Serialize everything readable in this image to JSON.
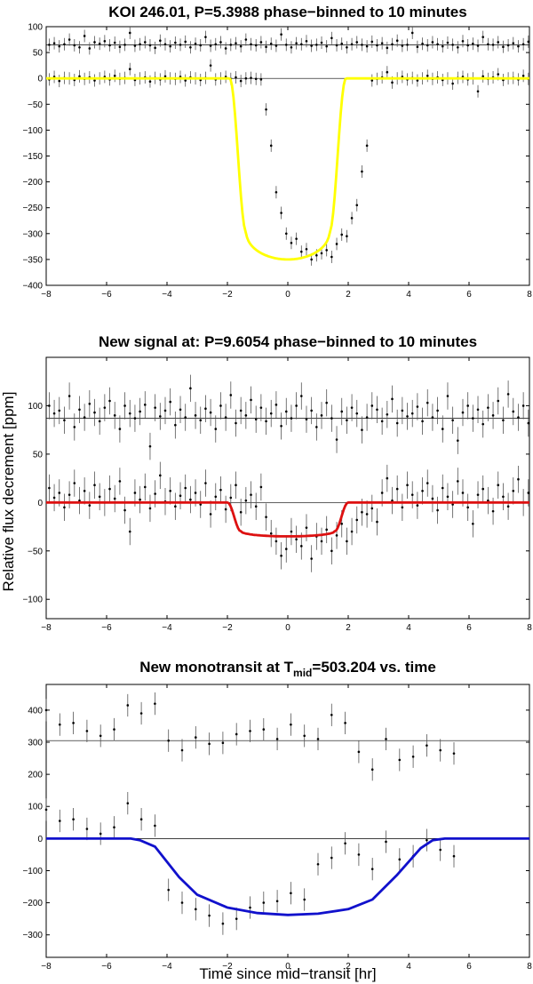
{
  "figure": {
    "ylabel": "Relative flux decrement [ppm]",
    "xlabel": "Time since mid−transit [hr]"
  },
  "chart_data": [
    {
      "type": "scatter",
      "title": "KOI 246.01, P=5.3988 phase−binned to 10 minutes",
      "xlim": [
        -8,
        8
      ],
      "ylim": [
        -400,
        100
      ],
      "xticks": [
        -8,
        -6,
        -4,
        -2,
        0,
        2,
        4,
        6,
        8
      ],
      "yticks": [
        100,
        50,
        0,
        -50,
        -100,
        -150,
        -200,
        -250,
        -300,
        -350,
        -400
      ],
      "grid": false,
      "baseline_levels": [
        65,
        0
      ],
      "model_color": "#ffff00",
      "upper_series": {
        "x0": -7.9,
        "dx": 0.167,
        "values": [
          65,
          68,
          62,
          66,
          75,
          64,
          60,
          82,
          58,
          70,
          67,
          72,
          64,
          69,
          61,
          65,
          88,
          63,
          66,
          70,
          64,
          59,
          73,
          66,
          62,
          69,
          65,
          71,
          60,
          67,
          64,
          80,
          63,
          66,
          70,
          58,
          65,
          68,
          62,
          75,
          66,
          64,
          70,
          61,
          67,
          63,
          85,
          65,
          60,
          68,
          66,
          72,
          63,
          65,
          69,
          62,
          78,
          64,
          67,
          60,
          66,
          70,
          65,
          62,
          71,
          64,
          68,
          59,
          66,
          73,
          63,
          65,
          88,
          61,
          67,
          64,
          70,
          66,
          62,
          69,
          65,
          60,
          72,
          64,
          67,
          63,
          80,
          66,
          65,
          70,
          61,
          64,
          68,
          62,
          66,
          71,
          65
        ]
      },
      "lower_series": {
        "x0": -7.9,
        "dx": 0.167,
        "values": [
          -2,
          3,
          -5,
          1,
          0,
          -3,
          4,
          -1,
          2,
          -4,
          0,
          3,
          -2,
          5,
          -1,
          1,
          18,
          -3,
          0,
          2,
          -6,
          1,
          -2,
          4,
          0,
          -1,
          3,
          -4,
          2,
          0,
          -3,
          1,
          25,
          -2,
          0,
          3,
          -1,
          2,
          -5,
          0,
          1,
          -1,
          -2,
          -60,
          -130,
          -220,
          -260,
          -300,
          -318,
          -310,
          -335,
          -330,
          -350,
          -342,
          -338,
          -332,
          -345,
          -320,
          -302,
          -305,
          -270,
          -245,
          -180,
          -130,
          -4,
          -1,
          2,
          12,
          -8,
          0,
          3,
          -2,
          1,
          -4,
          0,
          5,
          -1,
          2,
          -3,
          0,
          -10,
          1,
          3,
          -2,
          0,
          -25,
          4,
          -1,
          2,
          8,
          -3,
          0,
          1,
          -2,
          5,
          -1,
          0
        ]
      },
      "error_bar": 12,
      "model": {
        "type": "transit",
        "depth": 350,
        "t14": 3.85,
        "ingress": 0.55
      }
    },
    {
      "type": "scatter",
      "title": "New signal at: P=9.6054 phase−binned to 10 minutes",
      "xlim": [
        -8,
        8
      ],
      "ylim": [
        -120,
        150
      ],
      "xticks": [
        -8,
        -6,
        -4,
        -2,
        0,
        2,
        4,
        6,
        8
      ],
      "yticks": [
        100,
        50,
        0,
        -50,
        -100
      ],
      "grid": false,
      "baseline_levels": [
        87,
        0
      ],
      "model_color": "#dd1111",
      "upper_series": {
        "x0": -7.9,
        "dx": 0.167,
        "values": [
          100,
          92,
          95,
          85,
          110,
          78,
          96,
          88,
          102,
          93,
          84,
          98,
          105,
          90,
          76,
          100,
          92,
          87,
          94,
          101,
          58,
          98,
          89,
          95,
          104,
          80,
          96,
          88,
          118,
          90,
          85,
          97,
          93,
          76,
          100,
          88,
          111,
          82,
          95,
          90,
          106,
          86,
          98,
          84,
          92,
          101,
          79,
          94,
          87,
          100,
          110,
          86,
          95,
          78,
          90,
          103,
          87,
          65,
          94,
          85,
          98,
          92,
          75,
          88,
          100,
          96,
          84,
          91,
          107,
          82,
          95,
          89,
          92,
          99,
          84,
          103,
          88,
          95,
          76,
          110,
          85,
          64,
          93,
          100,
          87,
          96,
          81,
          98,
          90,
          105,
          85,
          112,
          94,
          88,
          100,
          82,
          99,
          90
        ]
      },
      "lower_series": {
        "x0": -7.9,
        "dx": 0.167,
        "values": [
          15,
          5,
          10,
          -5,
          8,
          20,
          2,
          12,
          -3,
          18,
          6,
          0,
          14,
          4,
          22,
          -8,
          -30,
          10,
          3,
          16,
          -6,
          9,
          28,
          1,
          12,
          -4,
          7,
          15,
          3,
          10,
          -2,
          20,
          -12,
          6,
          13,
          -7,
          5,
          18,
          -10,
          2,
          8,
          -4,
          16,
          -15,
          -32,
          -40,
          -55,
          -48,
          -30,
          -38,
          -45,
          -26,
          -58,
          -35,
          -40,
          -28,
          -50,
          -34,
          -22,
          -40,
          -30,
          -18,
          -10,
          -12,
          -6,
          -20,
          10,
          25,
          2,
          14,
          -5,
          18,
          8,
          -3,
          12,
          20,
          4,
          -8,
          15,
          6,
          -2,
          22,
          10,
          -5,
          -22,
          8,
          14,
          2,
          -9,
          18,
          6,
          -4,
          12,
          24,
          0,
          10,
          -6,
          15
        ]
      },
      "error_bar": 14,
      "model": {
        "type": "transit",
        "depth": 35,
        "t14": 4.0,
        "ingress": 0.45
      }
    },
    {
      "type": "scatter",
      "title": "New monotransit at T",
      "title_sub": "mid",
      "title_suffix": "=503.204 vs. time",
      "xlim": [
        -8,
        8
      ],
      "ylim": [
        -370,
        480
      ],
      "xticks": [
        -8,
        -6,
        -4,
        -2,
        0,
        2,
        4,
        6,
        8
      ],
      "yticks": [
        400,
        300,
        200,
        100,
        0,
        -100,
        -200,
        -300
      ],
      "grid": false,
      "baseline_levels": [
        305,
        0
      ],
      "model_color": "#1111cc",
      "upper_series": {
        "x0": -8,
        "dx": 0.45,
        "values": [
          400,
          355,
          360,
          335,
          320,
          340,
          415,
          390,
          420,
          305,
          275,
          315,
          295,
          298,
          325,
          335,
          340,
          310,
          355,
          320,
          310,
          385,
          360,
          270,
          215,
          310,
          245,
          255,
          290,
          275,
          265
        ]
      },
      "lower_series": {
        "x0": -8,
        "dx": 0.45,
        "values": [
          90,
          55,
          60,
          30,
          15,
          35,
          110,
          60,
          40,
          -160,
          -200,
          -220,
          -240,
          -265,
          -250,
          -215,
          -200,
          -195,
          -170,
          -190,
          -80,
          -60,
          -15,
          -50,
          -95,
          -10,
          -65,
          -55,
          -5,
          -35,
          -55
        ]
      },
      "error_bar": 35,
      "model": {
        "type": "polyline",
        "x": [
          -8,
          -7,
          -6,
          -5.2,
          -4.9,
          -4.4,
          -3.6,
          -3.0,
          -2.0,
          -1.0,
          0,
          1.0,
          2.0,
          2.8,
          3.6,
          4.4,
          4.8,
          5.2,
          6,
          7,
          8
        ],
        "y": [
          0,
          0,
          0,
          0,
          -5,
          -25,
          -120,
          -175,
          -215,
          -232,
          -238,
          -234,
          -220,
          -190,
          -115,
          -30,
          -5,
          0,
          0,
          0,
          0
        ]
      }
    }
  ]
}
